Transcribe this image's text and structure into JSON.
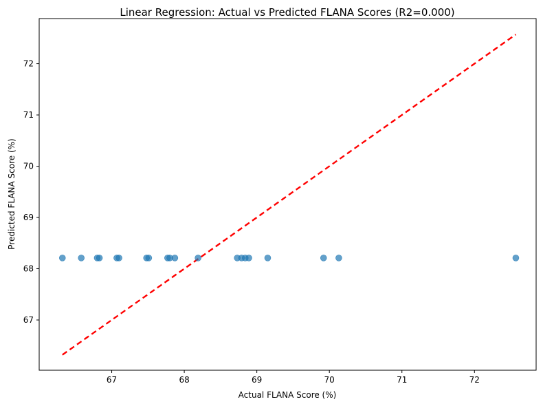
{
  "chart_data": {
    "type": "scatter",
    "title": "Linear Regression: Actual vs Predicted FLANA Scores (R2=0.000)",
    "xlabel": "Actual FLANA Score (%)",
    "ylabel": "Predicted FLANA Score (%)",
    "xlim": [
      66.0,
      72.85
    ],
    "ylim": [
      66.02,
      72.88
    ],
    "xticks": [
      "67",
      "68",
      "69",
      "70",
      "71",
      "72"
    ],
    "yticks": [
      "67",
      "68",
      "69",
      "70",
      "71",
      "72"
    ],
    "grid": false,
    "series": [
      {
        "kind": "points",
        "color": "#1f77b4",
        "x": [
          66.32,
          66.58,
          66.8,
          66.83,
          67.07,
          67.1,
          67.48,
          67.51,
          67.77,
          67.8,
          67.87,
          68.19,
          68.73,
          68.79,
          68.84,
          68.89,
          69.15,
          69.92,
          70.13,
          72.57
        ],
        "y": [
          68.21,
          68.21,
          68.21,
          68.21,
          68.21,
          68.21,
          68.21,
          68.21,
          68.21,
          68.21,
          68.21,
          68.21,
          68.21,
          68.21,
          68.21,
          68.21,
          68.21,
          68.21,
          68.21,
          68.21
        ]
      },
      {
        "kind": "reference-line",
        "style": "dashed",
        "color": "#ff0000",
        "x": [
          66.32,
          72.57
        ],
        "y": [
          66.32,
          72.57
        ]
      }
    ]
  }
}
